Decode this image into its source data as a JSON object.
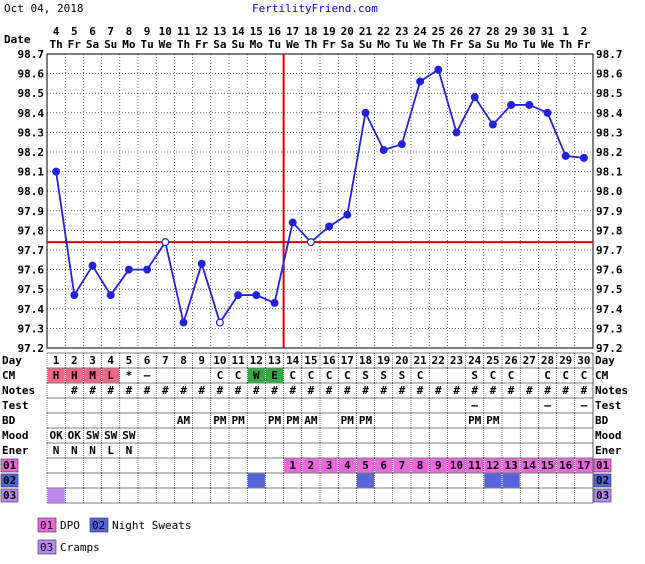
{
  "header": {
    "date_text": "Oct 04, 2018",
    "site_name": "FertilityFriend.com"
  },
  "row_labels": {
    "date": "Date",
    "day": "Day",
    "cm": "CM",
    "notes": "Notes",
    "test": "Test",
    "bd": "BD",
    "mood": "Mood",
    "ener": "Ener",
    "s1": "01",
    "s2": "02",
    "s3": "03"
  },
  "colors": {
    "temp_line": "#2222dd",
    "coverline": "#dd0000",
    "cm_h": "#ee6688",
    "cm_w": "#33aa44",
    "s1": "#ee66dd",
    "s2": "#5566dd",
    "s3": "#bb88ee",
    "grid": "#000000"
  },
  "chart_data": {
    "type": "line",
    "title": "",
    "ylim": [
      97.2,
      98.7
    ],
    "y_ticks": [
      "97.2",
      "97.3",
      "97.4",
      "97.5",
      "97.6",
      "97.7",
      "97.8",
      "97.9",
      "98.0",
      "98.1",
      "98.2",
      "98.3",
      "98.4",
      "98.5",
      "98.6",
      "98.7"
    ],
    "cycle_days": [
      "1",
      "2",
      "3",
      "4",
      "5",
      "6",
      "7",
      "8",
      "9",
      "10",
      "11",
      "12",
      "13",
      "14",
      "15",
      "16",
      "17",
      "18",
      "19",
      "20",
      "21",
      "22",
      "23",
      "24",
      "25",
      "26",
      "27",
      "28",
      "29",
      "30"
    ],
    "date_numbers": [
      "4",
      "5",
      "6",
      "7",
      "8",
      "9",
      "10",
      "11",
      "12",
      "13",
      "14",
      "15",
      "16",
      "17",
      "18",
      "19",
      "20",
      "21",
      "22",
      "23",
      "24",
      "25",
      "26",
      "27",
      "28",
      "29",
      "30",
      "31",
      "1",
      "2"
    ],
    "weekdays": [
      "Th",
      "Fr",
      "Sa",
      "Su",
      "Mo",
      "Tu",
      "We",
      "Th",
      "Fr",
      "Sa",
      "Su",
      "Mo",
      "Tu",
      "We",
      "Th",
      "Fr",
      "Sa",
      "Su",
      "Mo",
      "Tu",
      "We",
      "Th",
      "Fr",
      "Sa",
      "Su",
      "Mo",
      "Tu",
      "We",
      "Th",
      "Fr"
    ],
    "temps": [
      98.1,
      97.47,
      97.62,
      97.47,
      97.6,
      97.6,
      97.74,
      97.33,
      97.63,
      97.33,
      97.47,
      97.47,
      97.43,
      97.84,
      97.74,
      97.82,
      97.88,
      98.4,
      98.21,
      98.24,
      98.56,
      98.62,
      98.3,
      98.48,
      98.34,
      98.44,
      98.44,
      98.4,
      98.18,
      98.17
    ],
    "open_points": [
      7,
      10,
      15
    ],
    "coverline": 97.74,
    "ovulation_day": 13,
    "grid": true
  },
  "cm": [
    "H",
    "H",
    "M",
    "L",
    "*",
    "–",
    "",
    "",
    "",
    "C",
    "C",
    "W",
    "E",
    "C",
    "C",
    "C",
    "C",
    "S",
    "S",
    "S",
    "C",
    "",
    "",
    "S",
    "C",
    "C",
    "",
    "C",
    "C",
    "C"
  ],
  "cm_colored": {
    "H": "#ee6688",
    "M": "#ee6688",
    "L": "#ee6688",
    "W": "#33aa44",
    "E": "#33aa44"
  },
  "notes": [
    "",
    "#",
    "#",
    "#",
    "#",
    "#",
    "#",
    "#",
    "#",
    "#",
    "#",
    "#",
    "#",
    "#",
    "#",
    "#",
    "#",
    "#",
    "#",
    "#",
    "#",
    "#",
    "#",
    "#",
    "#",
    "#",
    "#",
    "#",
    "#",
    "#"
  ],
  "test": [
    "",
    "",
    "",
    "",
    "",
    "",
    "",
    "",
    "",
    "",
    "",
    "",
    "",
    "",
    "",
    "",
    "",
    "",
    "",
    "",
    "",
    "",
    "",
    "–",
    "",
    "",
    "",
    "–",
    "",
    "–"
  ],
  "bd": [
    "",
    "",
    "",
    "",
    "",
    "",
    "",
    "AM",
    "",
    "PM",
    "PM",
    "",
    "PM",
    "PM",
    "AM",
    "",
    "PM",
    "PM",
    "",
    "",
    "",
    "",
    "",
    "PM",
    "PM",
    "",
    "",
    "",
    "",
    ""
  ],
  "mood": [
    "OK",
    "OK",
    "SW",
    "SW",
    "SW",
    "",
    "",
    "",
    "",
    "",
    "",
    "",
    "",
    "",
    "",
    "",
    "",
    "",
    "",
    "",
    "",
    "",
    "",
    "",
    "",
    "",
    "",
    "",
    "",
    ""
  ],
  "ener": [
    "N",
    "N",
    "N",
    "L",
    "N",
    "",
    "",
    "",
    "",
    "",
    "",
    "",
    "",
    "",
    "",
    "",
    "",
    "",
    "",
    "",
    "",
    "",
    "",
    "",
    "",
    "",
    "",
    "",
    "",
    ""
  ],
  "s1_numbers": [
    "",
    "",
    "",
    "",
    "",
    "",
    "",
    "",
    "",
    "",
    "",
    "",
    "",
    "1",
    "2",
    "3",
    "4",
    "5",
    "6",
    "7",
    "8",
    "9",
    "10",
    "11",
    "12",
    "13",
    "14",
    "15",
    "16",
    "17"
  ],
  "s2_days": [
    12,
    18,
    25,
    26
  ],
  "s3_days": [
    1
  ],
  "legend": [
    {
      "code": "01",
      "label": "DPO"
    },
    {
      "code": "02",
      "label": "Night Sweats"
    },
    {
      "code": "03",
      "label": "Cramps"
    }
  ]
}
